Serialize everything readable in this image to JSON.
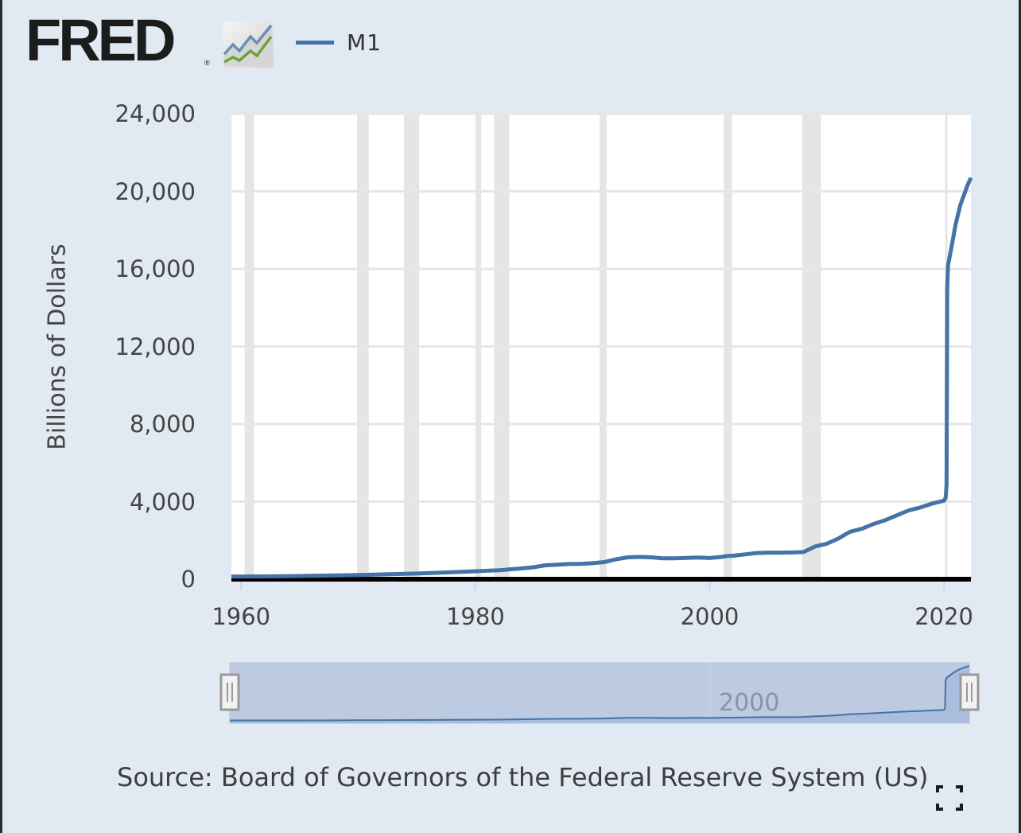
{
  "header": {
    "logo_text": "FRED",
    "logo_registered": "®",
    "logo_icon": "fred-chart-icon",
    "legend": [
      {
        "label": "M1",
        "color": "#4572a7"
      }
    ]
  },
  "colors": {
    "series": "#4572a7",
    "recession": "#e5e5e5",
    "gridline": "#e6e6e6",
    "background": "#e1e9f2",
    "navigator_fill": "#bccae2"
  },
  "navigator": {
    "tick_label": "2000",
    "range_start": 1959,
    "range_end": 2022.2
  },
  "source_text": "Source: Board of Governors of the Federal Reserve System (US)",
  "expand_icon": "fullscreen-icon",
  "chart_data": {
    "type": "line",
    "title": "",
    "xlabel": "",
    "ylabel": "Billions of Dollars",
    "xlim": [
      1959.17,
      2022.3
    ],
    "ylim": [
      0,
      24000
    ],
    "x_ticks": [
      1960,
      1980,
      2000,
      2020
    ],
    "x_tick_labels": [
      "1960",
      "1980",
      "2000",
      "2020"
    ],
    "y_ticks": [
      0,
      4000,
      8000,
      12000,
      16000,
      20000,
      24000
    ],
    "y_tick_labels": [
      "0",
      "4,000",
      "8,000",
      "12,000",
      "16,000",
      "20,000",
      "24,000"
    ],
    "grid": true,
    "legend_position": "top-left",
    "recessions": [
      [
        1960.3,
        1961.1
      ],
      [
        1969.9,
        1970.9
      ],
      [
        1973.9,
        1975.2
      ],
      [
        1980.0,
        1980.5
      ],
      [
        1981.6,
        1982.9
      ],
      [
        1990.6,
        1991.2
      ],
      [
        2001.2,
        2001.9
      ],
      [
        2007.9,
        2009.5
      ],
      [
        2020.1,
        2020.3
      ]
    ],
    "series": [
      {
        "name": "M1",
        "x": [
          1959.17,
          1962,
          1965,
          1968,
          1970,
          1972,
          1975,
          1978,
          1980,
          1982,
          1984,
          1985,
          1986,
          1987,
          1988,
          1989,
          1990,
          1991,
          1992,
          1993,
          1994,
          1995,
          1996,
          1997,
          1998,
          1999,
          2000,
          2001,
          2001.5,
          2002,
          2003,
          2004,
          2005,
          2006,
          2007,
          2008,
          2008.7,
          2009,
          2010,
          2011,
          2011.7,
          2012,
          2013,
          2014,
          2015,
          2016,
          2017,
          2018,
          2019,
          2020.0,
          2020.15,
          2020.22,
          2020.28,
          2020.35,
          2020.7,
          2021.0,
          2021.4,
          2021.7,
          2022.0,
          2022.3
        ],
        "values": [
          140,
          145,
          165,
          195,
          215,
          245,
          290,
          355,
          410,
          460,
          560,
          620,
          720,
          750,
          785,
          790,
          825,
          880,
          1025,
          1130,
          1150,
          1130,
          1080,
          1075,
          1095,
          1120,
          1090,
          1150,
          1200,
          1210,
          1280,
          1350,
          1370,
          1370,
          1380,
          1400,
          1600,
          1690,
          1830,
          2100,
          2350,
          2450,
          2600,
          2850,
          3050,
          3300,
          3550,
          3700,
          3900,
          4050,
          4200,
          4900,
          15000,
          16200,
          17300,
          18300,
          19300,
          19800,
          20300,
          20700
        ]
      }
    ]
  }
}
